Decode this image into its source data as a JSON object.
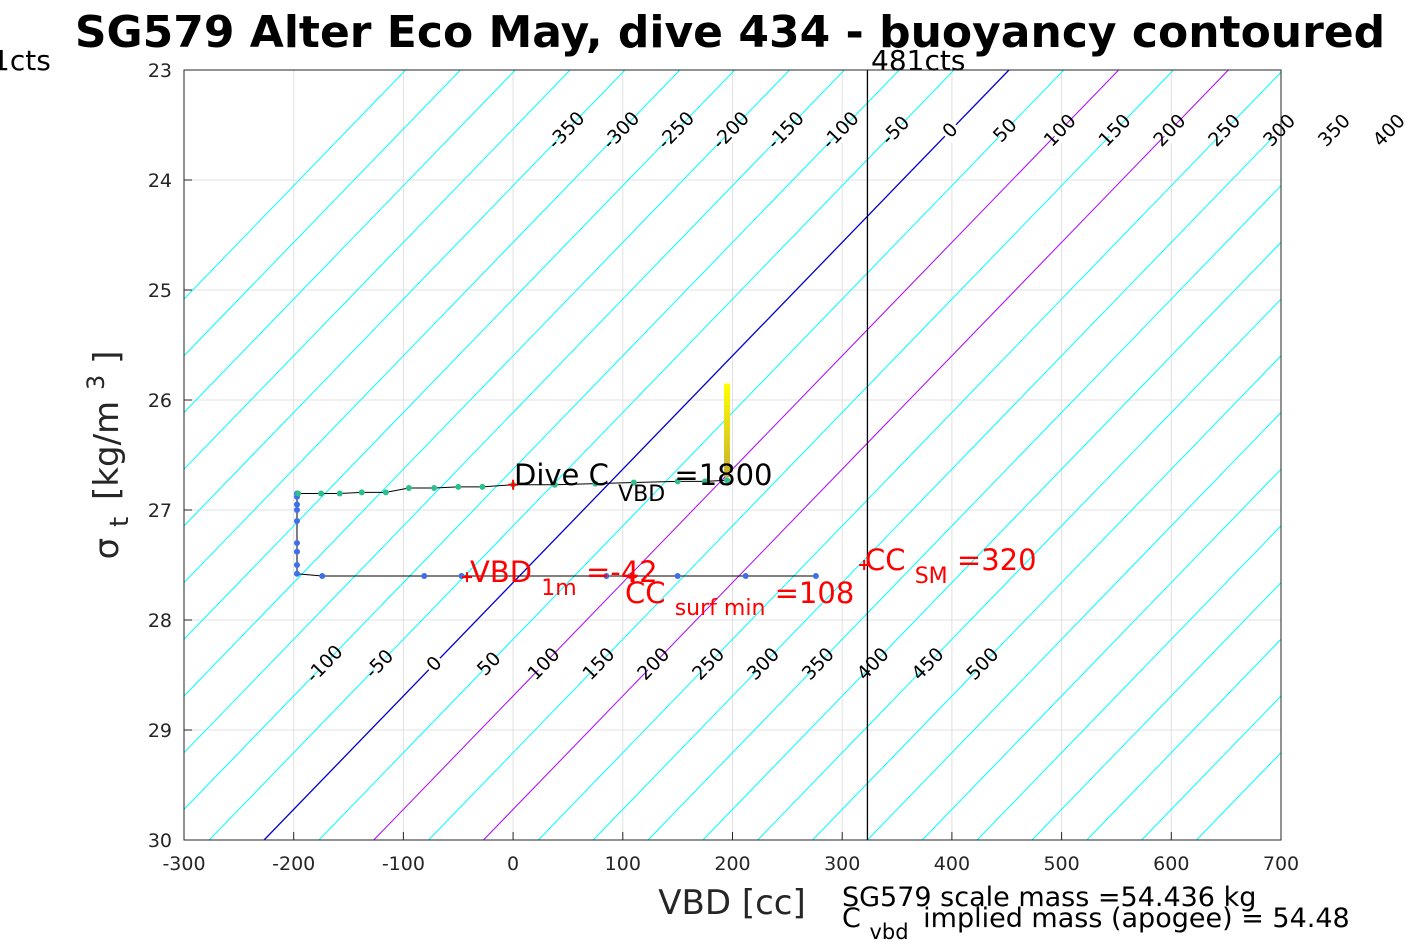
{
  "title": "SG579 Alter Eco May, dive 434 - buoyancy contoured",
  "xlabel": "VBD [cc]",
  "ylabel_main": "σ",
  "ylabel_sub": "t",
  "ylabel_units": "[kg/m",
  "ylabel_units_sup": "3",
  "ylabel_units_close": "]",
  "left_edge_label": "1cts",
  "vline_label": "481cts",
  "footer_line1": "SG579 scale mass =54.436 kg",
  "footer_line2_main": "C",
  "footer_line2_sub": "vbd",
  "footer_line2_rest": "implied mass (apogee) = 54.48",
  "annotations": {
    "dive_c_main": "Dive C",
    "dive_c_sub": "VBD",
    "dive_c_val": "=1800",
    "vbd1m_main": "VBD",
    "vbd1m_sub": "1m",
    "vbd1m_val": "=-42",
    "ccsurf_main": "CC",
    "ccsurf_sub": "surf min",
    "ccsurf_val": "=108",
    "ccsm_main": "CC",
    "ccsm_sub": "SM",
    "ccsm_val": "=320"
  },
  "colors": {
    "contour": "#00ffff",
    "zero_contour": "#0000cd",
    "special_contour": "#b000ff",
    "grid": "#e0e0e0",
    "red": "#ff0000",
    "profile_line": "#000000"
  },
  "chart_data": {
    "type": "line",
    "xlim": [
      -300,
      700
    ],
    "ylim": [
      30,
      23
    ],
    "xticks": [
      -300,
      -200,
      -100,
      0,
      100,
      200,
      300,
      400,
      500,
      600,
      700
    ],
    "yticks": [
      23,
      24,
      25,
      26,
      27,
      28,
      29,
      30
    ],
    "grid": true,
    "contour_slope_cc_per_sigma": -97,
    "contour_zero_at_sigma30": -227,
    "contour_levels": [
      -550,
      -500,
      -450,
      -400,
      -350,
      -300,
      -250,
      -200,
      -150,
      -100,
      -50,
      0,
      50,
      100,
      150,
      200,
      250,
      300,
      350,
      400,
      450,
      500,
      550,
      600,
      650,
      700,
      750,
      800,
      850
    ],
    "zero_contour_level": 0,
    "special_contour_levels": [
      100,
      200
    ],
    "top_contour_labels": [
      -350,
      -300,
      -250,
      -200,
      -150,
      -100,
      -50,
      0,
      50,
      100,
      150,
      200,
      250,
      300,
      350,
      400,
      450,
      500
    ],
    "bottom_contour_labels": [
      -100,
      -50,
      0,
      50,
      100,
      150,
      200,
      250,
      300,
      350,
      400,
      450,
      500
    ],
    "vertical_line_x": 323,
    "dive_profile": [
      {
        "x": 276,
        "y": 27.6
      },
      {
        "x": 212,
        "y": 27.6
      },
      {
        "x": 150,
        "y": 27.6
      },
      {
        "x": 107,
        "y": 27.6
      },
      {
        "x": 85,
        "y": 27.6
      },
      {
        "x": -47,
        "y": 27.6
      },
      {
        "x": -81,
        "y": 27.6
      },
      {
        "x": -174,
        "y": 27.6
      },
      {
        "x": -197,
        "y": 27.58
      },
      {
        "x": -197,
        "y": 27.5
      },
      {
        "x": -197,
        "y": 27.38
      },
      {
        "x": -197,
        "y": 27.3
      },
      {
        "x": -197,
        "y": 27.1
      },
      {
        "x": -197,
        "y": 27.0
      },
      {
        "x": -197,
        "y": 26.95
      },
      {
        "x": -197,
        "y": 26.88
      },
      {
        "x": -197,
        "y": 26.85
      }
    ],
    "climb_profile": [
      {
        "x": -196,
        "y": 26.85
      },
      {
        "x": -175,
        "y": 26.85
      },
      {
        "x": -158,
        "y": 26.85
      },
      {
        "x": -138,
        "y": 26.84
      },
      {
        "x": -116,
        "y": 26.84
      },
      {
        "x": -95,
        "y": 26.8
      },
      {
        "x": -72,
        "y": 26.8
      },
      {
        "x": -50,
        "y": 26.79
      },
      {
        "x": -28,
        "y": 26.79
      },
      {
        "x": 0,
        "y": 26.77
      },
      {
        "x": 38,
        "y": 26.77
      },
      {
        "x": 75,
        "y": 26.76
      },
      {
        "x": 110,
        "y": 26.75
      },
      {
        "x": 150,
        "y": 26.74
      },
      {
        "x": 175,
        "y": 26.74
      },
      {
        "x": 195,
        "y": 26.73
      }
    ],
    "surface_bar": {
      "x": 195,
      "y_from": 26.7,
      "y_to": 25.85
    },
    "red_markers": [
      {
        "x": -42,
        "y": 27.61
      },
      {
        "x": 108,
        "y": 27.61
      },
      {
        "x": 320,
        "y": 27.5
      },
      {
        "x": 0,
        "y": 26.77
      }
    ]
  }
}
